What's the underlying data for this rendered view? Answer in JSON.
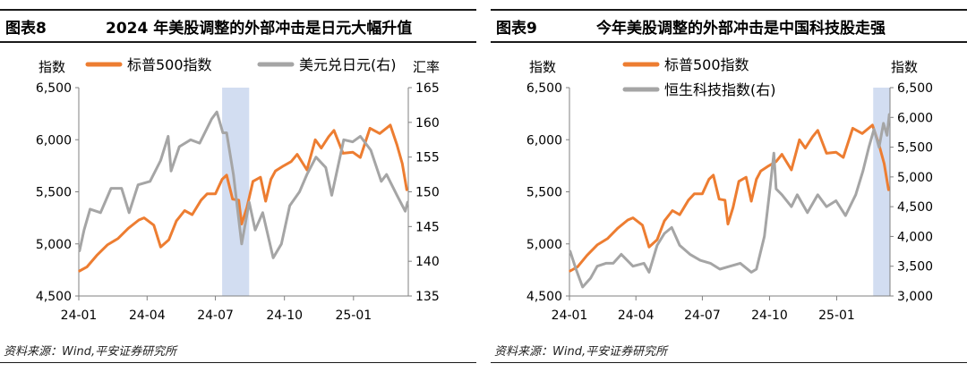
{
  "chart_data": [
    {
      "type": "line",
      "figure_label": "图表8",
      "title": "2024 年美股调整的外部冲击是日元大幅升值",
      "source": "资料来源：Wind,平安证券研究所",
      "ylabel": "指数",
      "y2label": "汇率",
      "ylim": [
        4500,
        6500
      ],
      "y2lim": [
        135,
        165
      ],
      "yticks": [
        4500,
        5000,
        5500,
        6000,
        6500
      ],
      "y2ticks": [
        135,
        140,
        145,
        150,
        155,
        160,
        165
      ],
      "ytick_labels": [
        "4,500",
        "5,000",
        "5,500",
        "6,000",
        "6,500"
      ],
      "y2tick_labels": [
        "135",
        "140",
        "145",
        "150",
        "155",
        "160",
        "165"
      ],
      "xticks": [
        "2024-01-01",
        "2024-04-01",
        "2024-07-01",
        "2024-10-01",
        "2025-01-01"
      ],
      "xtick_labels": [
        "24-01",
        "24-04",
        "24-07",
        "24-10",
        "25-01"
      ],
      "xrange": [
        "2024-01-01",
        "2025-03-15"
      ],
      "highlight": {
        "start": "2024-07-10",
        "end": "2024-08-15"
      },
      "legend_position": "top",
      "grid": false,
      "series": [
        {
          "name": "标普500指数",
          "axis": "left",
          "color": "#ed7d31",
          "points": [
            [
              "2024-01-02",
              4740
            ],
            [
              "2024-01-12",
              4780
            ],
            [
              "2024-01-25",
              4890
            ],
            [
              "2024-02-08",
              4990
            ],
            [
              "2024-02-22",
              5050
            ],
            [
              "2024-03-07",
              5150
            ],
            [
              "2024-03-21",
              5230
            ],
            [
              "2024-03-28",
              5250
            ],
            [
              "2024-04-10",
              5180
            ],
            [
              "2024-04-19",
              4970
            ],
            [
              "2024-04-30",
              5040
            ],
            [
              "2024-05-10",
              5220
            ],
            [
              "2024-05-21",
              5320
            ],
            [
              "2024-05-31",
              5280
            ],
            [
              "2024-06-12",
              5420
            ],
            [
              "2024-06-20",
              5480
            ],
            [
              "2024-07-01",
              5480
            ],
            [
              "2024-07-10",
              5620
            ],
            [
              "2024-07-16",
              5660
            ],
            [
              "2024-07-24",
              5430
            ],
            [
              "2024-08-01",
              5420
            ],
            [
              "2024-08-05",
              5190
            ],
            [
              "2024-08-12",
              5350
            ],
            [
              "2024-08-20",
              5600
            ],
            [
              "2024-08-30",
              5640
            ],
            [
              "2024-09-06",
              5410
            ],
            [
              "2024-09-13",
              5620
            ],
            [
              "2024-09-19",
              5700
            ],
            [
              "2024-09-30",
              5750
            ],
            [
              "2024-10-10",
              5790
            ],
            [
              "2024-10-18",
              5860
            ],
            [
              "2024-10-31",
              5710
            ],
            [
              "2024-11-11",
              6000
            ],
            [
              "2024-11-19",
              5920
            ],
            [
              "2024-11-29",
              6030
            ],
            [
              "2024-12-06",
              6090
            ],
            [
              "2024-12-18",
              5870
            ],
            [
              "2024-12-31",
              5880
            ],
            [
              "2025-01-10",
              5830
            ],
            [
              "2025-01-23",
              6110
            ],
            [
              "2025-02-05",
              6060
            ],
            [
              "2025-02-19",
              6140
            ],
            [
              "2025-02-28",
              5950
            ],
            [
              "2025-03-07",
              5770
            ],
            [
              "2025-03-13",
              5520
            ]
          ]
        },
        {
          "name": "美元兑日元(右)",
          "axis": "right",
          "color": "#a5a5a5",
          "points": [
            [
              "2024-01-02",
              141.5
            ],
            [
              "2024-01-08",
              144.5
            ],
            [
              "2024-01-16",
              147.5
            ],
            [
              "2024-01-30",
              147.0
            ],
            [
              "2024-02-13",
              150.5
            ],
            [
              "2024-02-27",
              150.5
            ],
            [
              "2024-03-08",
              147.0
            ],
            [
              "2024-03-20",
              151.0
            ],
            [
              "2024-04-05",
              151.5
            ],
            [
              "2024-04-19",
              154.5
            ],
            [
              "2024-04-29",
              158.0
            ],
            [
              "2024-05-03",
              153.0
            ],
            [
              "2024-05-14",
              156.5
            ],
            [
              "2024-05-29",
              157.5
            ],
            [
              "2024-06-10",
              157.0
            ],
            [
              "2024-06-26",
              160.5
            ],
            [
              "2024-07-03",
              161.5
            ],
            [
              "2024-07-11",
              158.5
            ],
            [
              "2024-07-16",
              158.5
            ],
            [
              "2024-07-25",
              152.5
            ],
            [
              "2024-08-05",
              142.5
            ],
            [
              "2024-08-15",
              148.5
            ],
            [
              "2024-08-23",
              144.5
            ],
            [
              "2024-09-02",
              147.0
            ],
            [
              "2024-09-16",
              140.5
            ],
            [
              "2024-09-27",
              142.5
            ],
            [
              "2024-10-08",
              148.0
            ],
            [
              "2024-10-21",
              150.0
            ],
            [
              "2024-10-31",
              152.5
            ],
            [
              "2024-11-12",
              155.0
            ],
            [
              "2024-11-25",
              153.5
            ],
            [
              "2024-12-03",
              149.5
            ],
            [
              "2024-12-19",
              157.5
            ],
            [
              "2024-12-31",
              157.2
            ],
            [
              "2025-01-10",
              158.0
            ],
            [
              "2025-01-24",
              156.0
            ],
            [
              "2025-02-07",
              151.5
            ],
            [
              "2025-02-14",
              152.5
            ],
            [
              "2025-02-28",
              149.5
            ],
            [
              "2025-03-11",
              147.2
            ],
            [
              "2025-03-14",
              148.5
            ]
          ]
        }
      ]
    },
    {
      "type": "line",
      "figure_label": "图表9",
      "title": "今年美股调整的外部冲击是中国科技股走强",
      "source": "资料来源：Wind,平安证券研究所",
      "ylabel": "指数",
      "y2label": "指数",
      "ylim": [
        4500,
        6500
      ],
      "y2lim": [
        3000,
        6500
      ],
      "yticks": [
        4500,
        5000,
        5500,
        6000,
        6500
      ],
      "y2ticks": [
        3000,
        3500,
        4000,
        4500,
        5000,
        5500,
        6000,
        6500
      ],
      "ytick_labels": [
        "4,500",
        "5,000",
        "5,500",
        "6,000",
        "6,500"
      ],
      "y2tick_labels": [
        "3,000",
        "3,500",
        "4,000",
        "4,500",
        "5,000",
        "5,500",
        "6,000",
        "6,500"
      ],
      "xticks": [
        "2024-01-01",
        "2024-04-01",
        "2024-07-01",
        "2024-10-01",
        "2025-01-01"
      ],
      "xtick_labels": [
        "24-01",
        "24-04",
        "24-07",
        "24-10",
        "25-01"
      ],
      "xrange": [
        "2024-01-01",
        "2025-03-15"
      ],
      "highlight": {
        "start": "2025-02-20",
        "end": "2025-03-15"
      },
      "legend_position": "top",
      "grid": false,
      "series": [
        {
          "name": "标普500指数",
          "axis": "left",
          "color": "#ed7d31",
          "points": [
            [
              "2024-01-02",
              4740
            ],
            [
              "2024-01-12",
              4780
            ],
            [
              "2024-01-25",
              4890
            ],
            [
              "2024-02-08",
              4990
            ],
            [
              "2024-02-22",
              5050
            ],
            [
              "2024-03-07",
              5150
            ],
            [
              "2024-03-21",
              5230
            ],
            [
              "2024-03-28",
              5250
            ],
            [
              "2024-04-10",
              5180
            ],
            [
              "2024-04-19",
              4970
            ],
            [
              "2024-04-30",
              5040
            ],
            [
              "2024-05-10",
              5220
            ],
            [
              "2024-05-21",
              5320
            ],
            [
              "2024-05-31",
              5280
            ],
            [
              "2024-06-12",
              5420
            ],
            [
              "2024-06-20",
              5480
            ],
            [
              "2024-07-01",
              5480
            ],
            [
              "2024-07-10",
              5620
            ],
            [
              "2024-07-16",
              5660
            ],
            [
              "2024-07-24",
              5430
            ],
            [
              "2024-08-01",
              5420
            ],
            [
              "2024-08-05",
              5190
            ],
            [
              "2024-08-12",
              5350
            ],
            [
              "2024-08-20",
              5600
            ],
            [
              "2024-08-30",
              5640
            ],
            [
              "2024-09-06",
              5410
            ],
            [
              "2024-09-13",
              5620
            ],
            [
              "2024-09-19",
              5700
            ],
            [
              "2024-09-30",
              5750
            ],
            [
              "2024-10-10",
              5790
            ],
            [
              "2024-10-18",
              5860
            ],
            [
              "2024-10-31",
              5710
            ],
            [
              "2024-11-11",
              6000
            ],
            [
              "2024-11-19",
              5920
            ],
            [
              "2024-11-29",
              6030
            ],
            [
              "2024-12-06",
              6090
            ],
            [
              "2024-12-18",
              5870
            ],
            [
              "2024-12-31",
              5880
            ],
            [
              "2025-01-10",
              5830
            ],
            [
              "2025-01-23",
              6110
            ],
            [
              "2025-02-05",
              6060
            ],
            [
              "2025-02-19",
              6140
            ],
            [
              "2025-02-28",
              5950
            ],
            [
              "2025-03-07",
              5770
            ],
            [
              "2025-03-13",
              5520
            ]
          ]
        },
        {
          "name": "恒生科技指数(右)",
          "axis": "right",
          "color": "#a5a5a5",
          "points": [
            [
              "2024-01-02",
              3750
            ],
            [
              "2024-01-10",
              3450
            ],
            [
              "2024-01-19",
              3150
            ],
            [
              "2024-01-30",
              3300
            ],
            [
              "2024-02-08",
              3500
            ],
            [
              "2024-02-20",
              3550
            ],
            [
              "2024-03-01",
              3550
            ],
            [
              "2024-03-12",
              3700
            ],
            [
              "2024-03-28",
              3500
            ],
            [
              "2024-04-12",
              3550
            ],
            [
              "2024-04-19",
              3400
            ],
            [
              "2024-04-30",
              3850
            ],
            [
              "2024-05-10",
              4050
            ],
            [
              "2024-05-20",
              4150
            ],
            [
              "2024-05-31",
              3850
            ],
            [
              "2024-06-14",
              3700
            ],
            [
              "2024-06-28",
              3600
            ],
            [
              "2024-07-12",
              3550
            ],
            [
              "2024-07-25",
              3450
            ],
            [
              "2024-08-08",
              3500
            ],
            [
              "2024-08-22",
              3550
            ],
            [
              "2024-09-06",
              3400
            ],
            [
              "2024-09-13",
              3450
            ],
            [
              "2024-09-24",
              4000
            ],
            [
              "2024-10-02",
              4850
            ],
            [
              "2024-10-07",
              5400
            ],
            [
              "2024-10-10",
              4800
            ],
            [
              "2024-10-18",
              4700
            ],
            [
              "2024-10-31",
              4500
            ],
            [
              "2024-11-08",
              4700
            ],
            [
              "2024-11-22",
              4400
            ],
            [
              "2024-12-06",
              4700
            ],
            [
              "2024-12-18",
              4500
            ],
            [
              "2024-12-31",
              4600
            ],
            [
              "2025-01-13",
              4350
            ],
            [
              "2025-01-27",
              4700
            ],
            [
              "2025-02-06",
              5100
            ],
            [
              "2025-02-14",
              5500
            ],
            [
              "2025-02-21",
              5800
            ],
            [
              "2025-02-28",
              5500
            ],
            [
              "2025-03-06",
              5900
            ],
            [
              "2025-03-11",
              5700
            ],
            [
              "2025-03-14",
              6050
            ]
          ]
        }
      ]
    }
  ]
}
